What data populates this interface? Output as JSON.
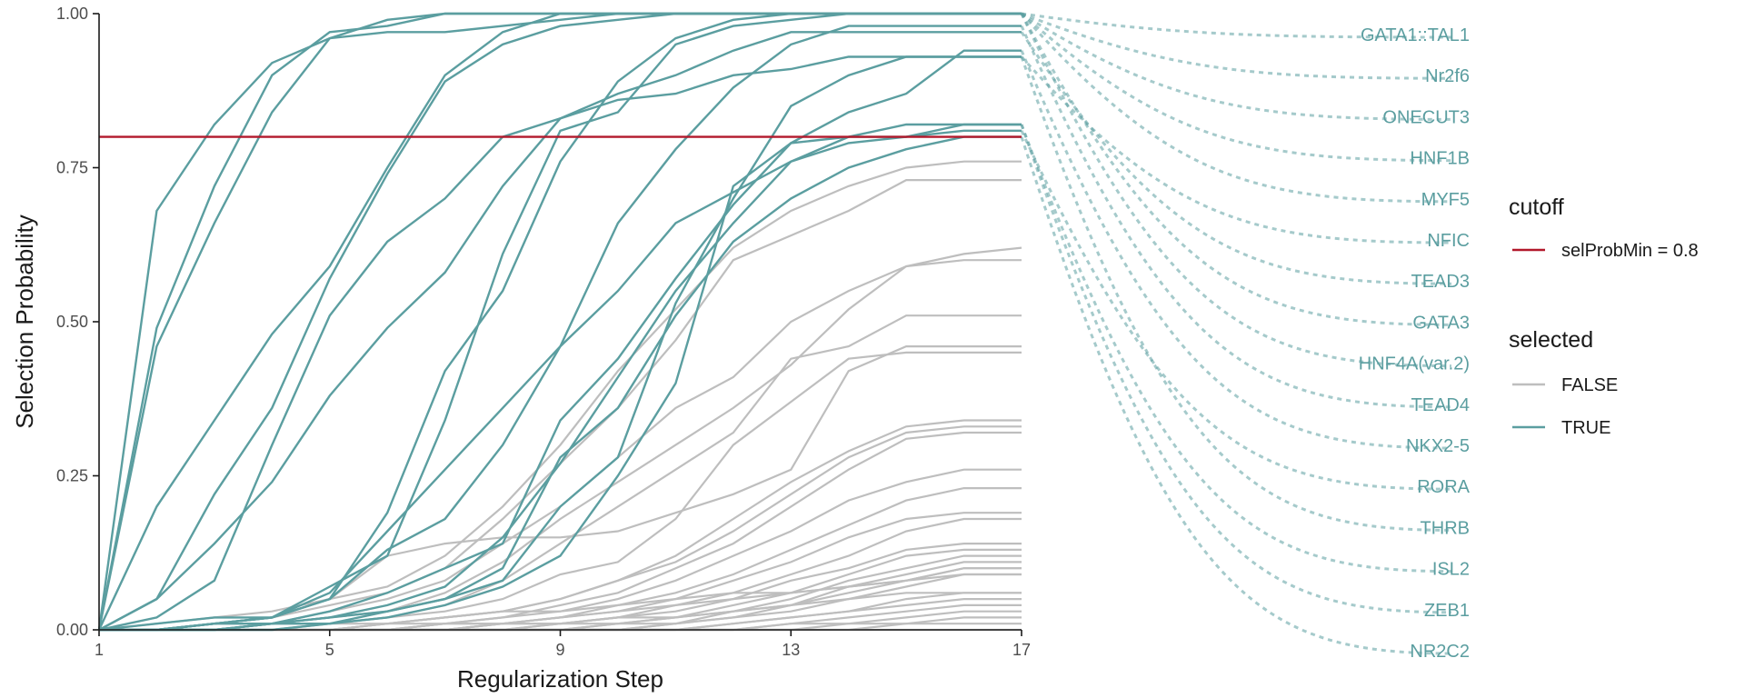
{
  "colors": {
    "selected": "#5b9ea0",
    "unselected": "#bebebe",
    "cutoff": "#b2182b",
    "axis": "#1a1a1a"
  },
  "chart_data": {
    "type": "line",
    "xlabel": "Regularization Step",
    "ylabel": "Selection Probability",
    "xlim": [
      1,
      17
    ],
    "ylim": [
      0,
      1
    ],
    "x_ticks": [
      1,
      5,
      9,
      13,
      17
    ],
    "y_ticks": [
      "0.00",
      "0.25",
      "0.50",
      "0.75",
      "1.00"
    ],
    "x": [
      1,
      2,
      3,
      4,
      5,
      6,
      7,
      8,
      9,
      10,
      11,
      12,
      13,
      14,
      15,
      16,
      17
    ],
    "grid": false,
    "cutoff": {
      "value": 0.8,
      "label": "selProbMin = 0.8",
      "legend_title": "cutoff"
    },
    "legend": {
      "position": "right",
      "selected_title": "selected",
      "false_label": "FALSE",
      "true_label": "TRUE"
    },
    "selected_series": [
      {
        "name": "GATA1::TAL1",
        "values": [
          0,
          0.68,
          0.82,
          0.92,
          0.96,
          0.99,
          1.0,
          1.0,
          1.0,
          1.0,
          1.0,
          1.0,
          1.0,
          1.0,
          1.0,
          1.0,
          1.0
        ]
      },
      {
        "name": "Nr2f6",
        "values": [
          0,
          0.49,
          0.72,
          0.9,
          0.97,
          0.98,
          1.0,
          1.0,
          1.0,
          1.0,
          1.0,
          1.0,
          1.0,
          1.0,
          1.0,
          1.0,
          1.0
        ]
      },
      {
        "name": "ONECUT3",
        "values": [
          0,
          0.46,
          0.66,
          0.84,
          0.96,
          0.97,
          0.97,
          0.98,
          0.99,
          1.0,
          1.0,
          1.0,
          1.0,
          1.0,
          1.0,
          1.0,
          1.0
        ]
      },
      {
        "name": "HNF1B",
        "values": [
          0,
          0.2,
          0.34,
          0.48,
          0.59,
          0.75,
          0.9,
          0.97,
          1.0,
          1.0,
          1.0,
          1.0,
          1.0,
          1.0,
          1.0,
          1.0,
          1.0
        ]
      },
      {
        "name": "MYF5",
        "values": [
          0,
          0.05,
          0.22,
          0.36,
          0.57,
          0.74,
          0.89,
          0.95,
          0.98,
          0.99,
          1.0,
          1.0,
          1.0,
          1.0,
          1.0,
          1.0,
          1.0
        ]
      },
      {
        "name": "NFIC",
        "values": [
          0,
          0.05,
          0.14,
          0.24,
          0.38,
          0.49,
          0.58,
          0.72,
          0.83,
          0.86,
          0.87,
          0.9,
          0.91,
          0.93,
          0.93,
          0.93,
          0.93
        ]
      },
      {
        "name": "TEAD3",
        "values": [
          0,
          0.02,
          0.08,
          0.3,
          0.51,
          0.63,
          0.7,
          0.8,
          0.83,
          0.87,
          0.9,
          0.94,
          0.97,
          0.97,
          0.97,
          0.97,
          0.97
        ]
      },
      {
        "name": "GATA3",
        "values": [
          0,
          0.01,
          0.02,
          0.02,
          0.05,
          0.19,
          0.42,
          0.55,
          0.76,
          0.89,
          0.96,
          0.99,
          1.0,
          1.0,
          1.0,
          1.0,
          1.0
        ]
      },
      {
        "name": "HNF4A(var.2)",
        "values": [
          0,
          0.0,
          0.01,
          0.02,
          0.07,
          0.12,
          0.34,
          0.61,
          0.81,
          0.84,
          0.95,
          0.98,
          0.99,
          1.0,
          1.0,
          1.0,
          1.0
        ]
      },
      {
        "name": "TEAD4",
        "values": [
          0,
          0.0,
          0.01,
          0.02,
          0.05,
          0.13,
          0.18,
          0.3,
          0.46,
          0.66,
          0.78,
          0.88,
          0.95,
          0.98,
          0.98,
          0.98,
          0.98
        ]
      },
      {
        "name": "NKX2-5",
        "values": [
          0,
          0.0,
          0.01,
          0.01,
          0.03,
          0.06,
          0.1,
          0.14,
          0.34,
          0.44,
          0.57,
          0.69,
          0.79,
          0.84,
          0.87,
          0.94,
          0.94
        ]
      },
      {
        "name": "RORA",
        "values": [
          0,
          0.0,
          0.0,
          0.01,
          0.02,
          0.04,
          0.07,
          0.15,
          0.27,
          0.41,
          0.55,
          0.66,
          0.76,
          0.8,
          0.8,
          0.81,
          0.81
        ]
      },
      {
        "name": "THRB",
        "values": [
          0,
          0.0,
          0.0,
          0.01,
          0.02,
          0.03,
          0.05,
          0.08,
          0.2,
          0.28,
          0.53,
          0.7,
          0.85,
          0.9,
          0.93,
          0.93,
          0.93
        ]
      },
      {
        "name": "ISL2",
        "values": [
          0,
          0.0,
          0.0,
          0.0,
          0.01,
          0.02,
          0.04,
          0.07,
          0.12,
          0.25,
          0.4,
          0.72,
          0.79,
          0.8,
          0.82,
          0.82,
          0.82
        ]
      },
      {
        "name": "ZEB1",
        "values": [
          0,
          0.0,
          0.01,
          0.02,
          0.06,
          0.16,
          0.26,
          0.36,
          0.46,
          0.55,
          0.66,
          0.71,
          0.76,
          0.79,
          0.8,
          0.82,
          0.82
        ]
      },
      {
        "name": "NR2C2",
        "values": [
          0,
          0.0,
          0.0,
          0.01,
          0.01,
          0.03,
          0.05,
          0.1,
          0.28,
          0.36,
          0.51,
          0.63,
          0.7,
          0.75,
          0.78,
          0.8,
          0.8
        ]
      }
    ],
    "unselected_series": [
      {
        "values": [
          0,
          0.01,
          0.02,
          0.03,
          0.05,
          0.07,
          0.12,
          0.2,
          0.3,
          0.42,
          0.52,
          0.62,
          0.68,
          0.72,
          0.75,
          0.76,
          0.76
        ]
      },
      {
        "values": [
          0,
          0.0,
          0.01,
          0.02,
          0.04,
          0.06,
          0.1,
          0.18,
          0.27,
          0.36,
          0.47,
          0.6,
          0.64,
          0.68,
          0.73,
          0.73,
          0.73
        ]
      },
      {
        "values": [
          0,
          0.0,
          0.01,
          0.01,
          0.03,
          0.05,
          0.08,
          0.14,
          0.2,
          0.28,
          0.36,
          0.41,
          0.5,
          0.55,
          0.59,
          0.61,
          0.62
        ]
      },
      {
        "values": [
          0,
          0.0,
          0.0,
          0.01,
          0.02,
          0.03,
          0.06,
          0.11,
          0.18,
          0.24,
          0.3,
          0.36,
          0.43,
          0.52,
          0.59,
          0.6,
          0.6
        ]
      },
      {
        "values": [
          0,
          0.0,
          0.0,
          0.01,
          0.01,
          0.02,
          0.04,
          0.08,
          0.14,
          0.2,
          0.26,
          0.32,
          0.44,
          0.46,
          0.51,
          0.51,
          0.51
        ]
      },
      {
        "values": [
          0,
          0.0,
          0.01,
          0.02,
          0.05,
          0.12,
          0.14,
          0.15,
          0.15,
          0.16,
          0.19,
          0.22,
          0.26,
          0.42,
          0.46,
          0.46,
          0.46
        ]
      },
      {
        "values": [
          0,
          0.0,
          0.0,
          0.0,
          0.01,
          0.02,
          0.03,
          0.05,
          0.09,
          0.11,
          0.18,
          0.3,
          0.37,
          0.44,
          0.45,
          0.45,
          0.45
        ]
      },
      {
        "values": [
          0,
          0.0,
          0.0,
          0.0,
          0.01,
          0.01,
          0.02,
          0.03,
          0.05,
          0.08,
          0.12,
          0.18,
          0.24,
          0.29,
          0.33,
          0.34,
          0.34
        ]
      },
      {
        "values": [
          0,
          0.0,
          0.0,
          0.0,
          0.0,
          0.01,
          0.02,
          0.03,
          0.05,
          0.08,
          0.11,
          0.16,
          0.22,
          0.28,
          0.32,
          0.33,
          0.33
        ]
      },
      {
        "values": [
          0,
          0.0,
          0.0,
          0.0,
          0.0,
          0.01,
          0.01,
          0.02,
          0.04,
          0.06,
          0.1,
          0.14,
          0.2,
          0.26,
          0.31,
          0.32,
          0.32
        ]
      },
      {
        "values": [
          0,
          0.0,
          0.0,
          0.0,
          0.0,
          0.0,
          0.01,
          0.02,
          0.03,
          0.05,
          0.08,
          0.12,
          0.16,
          0.21,
          0.24,
          0.26,
          0.26
        ]
      },
      {
        "values": [
          0,
          0.0,
          0.0,
          0.0,
          0.0,
          0.0,
          0.01,
          0.01,
          0.02,
          0.04,
          0.06,
          0.09,
          0.13,
          0.17,
          0.21,
          0.23,
          0.23
        ]
      },
      {
        "values": [
          0,
          0.0,
          0.0,
          0.0,
          0.0,
          0.0,
          0.0,
          0.01,
          0.02,
          0.03,
          0.05,
          0.08,
          0.11,
          0.15,
          0.18,
          0.19,
          0.19
        ]
      },
      {
        "values": [
          0,
          0.0,
          0.0,
          0.0,
          0.0,
          0.0,
          0.0,
          0.01,
          0.01,
          0.02,
          0.04,
          0.06,
          0.09,
          0.12,
          0.16,
          0.18,
          0.18
        ]
      },
      {
        "values": [
          0,
          0.0,
          0.0,
          0.0,
          0.0,
          0.0,
          0.0,
          0.0,
          0.01,
          0.02,
          0.03,
          0.05,
          0.08,
          0.1,
          0.13,
          0.14,
          0.14
        ]
      },
      {
        "values": [
          0,
          0.0,
          0.0,
          0.0,
          0.0,
          0.0,
          0.0,
          0.0,
          0.01,
          0.01,
          0.02,
          0.04,
          0.06,
          0.09,
          0.12,
          0.13,
          0.13
        ]
      },
      {
        "values": [
          0,
          0.0,
          0.0,
          0.0,
          0.0,
          0.0,
          0.0,
          0.0,
          0.0,
          0.01,
          0.02,
          0.03,
          0.05,
          0.08,
          0.1,
          0.12,
          0.12
        ]
      },
      {
        "values": [
          0,
          0.0,
          0.0,
          0.0,
          0.0,
          0.0,
          0.0,
          0.0,
          0.0,
          0.01,
          0.01,
          0.03,
          0.04,
          0.07,
          0.09,
          0.11,
          0.11
        ]
      },
      {
        "values": [
          0,
          0.0,
          0.0,
          0.0,
          0.0,
          0.0,
          0.0,
          0.0,
          0.0,
          0.0,
          0.01,
          0.02,
          0.04,
          0.06,
          0.08,
          0.1,
          0.1
        ]
      },
      {
        "values": [
          0,
          0.0,
          0.0,
          0.0,
          0.0,
          0.0,
          0.0,
          0.0,
          0.0,
          0.0,
          0.01,
          0.02,
          0.03,
          0.05,
          0.07,
          0.09,
          0.09
        ]
      },
      {
        "values": [
          0,
          0.0,
          0.0,
          0.0,
          0.0,
          0.0,
          0.0,
          0.0,
          0.0,
          0.0,
          0.0,
          0.01,
          0.02,
          0.03,
          0.05,
          0.06,
          0.06
        ]
      },
      {
        "values": [
          0,
          0.0,
          0.0,
          0.0,
          0.0,
          0.0,
          0.0,
          0.0,
          0.0,
          0.0,
          0.0,
          0.01,
          0.02,
          0.03,
          0.04,
          0.05,
          0.05
        ]
      },
      {
        "values": [
          0,
          0.0,
          0.0,
          0.0,
          0.0,
          0.0,
          0.0,
          0.0,
          0.0,
          0.0,
          0.0,
          0.0,
          0.01,
          0.02,
          0.03,
          0.04,
          0.04
        ]
      },
      {
        "values": [
          0,
          0.0,
          0.0,
          0.0,
          0.0,
          0.0,
          0.0,
          0.0,
          0.0,
          0.0,
          0.0,
          0.0,
          0.01,
          0.01,
          0.02,
          0.03,
          0.03
        ]
      },
      {
        "values": [
          0,
          0.0,
          0.0,
          0.0,
          0.0,
          0.0,
          0.0,
          0.0,
          0.0,
          0.0,
          0.0,
          0.0,
          0.0,
          0.01,
          0.01,
          0.02,
          0.02
        ]
      },
      {
        "values": [
          0,
          0.0,
          0.0,
          0.0,
          0.0,
          0.0,
          0.0,
          0.0,
          0.0,
          0.0,
          0.0,
          0.0,
          0.0,
          0.0,
          0.01,
          0.01,
          0.01
        ]
      },
      {
        "values": [
          0,
          0.0,
          0.0,
          0.0,
          0.0,
          0.0,
          0.0,
          0.0,
          0.0,
          0.0,
          0.0,
          0.0,
          0.0,
          0.0,
          0.0,
          0.0,
          0.0
        ]
      },
      {
        "values": [
          0,
          0.0,
          0.0,
          0.0,
          0.0,
          0.01,
          0.02,
          0.03,
          0.03,
          0.04,
          0.05,
          0.06,
          0.06,
          0.07,
          0.08,
          0.09,
          0.09
        ]
      },
      {
        "values": [
          0,
          0.0,
          0.0,
          0.0,
          0.0,
          0.0,
          0.01,
          0.01,
          0.02,
          0.03,
          0.04,
          0.05,
          0.06,
          0.07,
          0.08,
          0.1,
          0.1
        ]
      },
      {
        "values": [
          0,
          0.0,
          0.0,
          0.0,
          0.0,
          0.0,
          0.0,
          0.01,
          0.01,
          0.02,
          0.02,
          0.03,
          0.04,
          0.05,
          0.06,
          0.06,
          0.06
        ]
      }
    ]
  }
}
